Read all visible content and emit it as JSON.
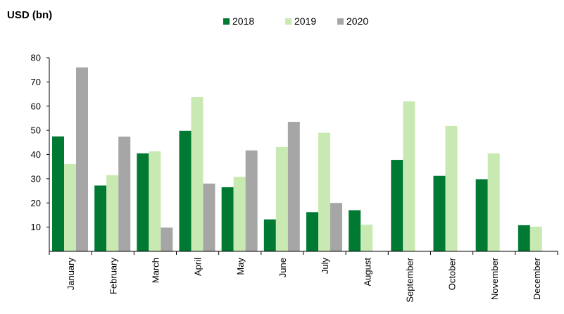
{
  "chart_data": {
    "type": "bar",
    "ylabel": "USD (bn)",
    "categories": [
      "January",
      "February",
      "March",
      "April",
      "May",
      "June",
      "July",
      "August",
      "September",
      "October",
      "November",
      "December"
    ],
    "series": [
      {
        "name": "2018",
        "color": "#007A33",
        "values": [
          47.5,
          27.2,
          40.5,
          49.8,
          26.5,
          13.2,
          16.2,
          17.0,
          37.8,
          31.2,
          29.8,
          10.8
        ]
      },
      {
        "name": "2019",
        "color": "#C9E9B2",
        "values": [
          36.1,
          31.5,
          41.3,
          63.7,
          30.8,
          43.1,
          49.0,
          11.0,
          62.0,
          51.8,
          40.5,
          10.2
        ]
      },
      {
        "name": "2020",
        "color": "#A6A6A6",
        "values": [
          76.0,
          47.4,
          9.8,
          28.0,
          41.7,
          53.5,
          20.0,
          null,
          null,
          null,
          null,
          null
        ]
      }
    ],
    "ylim": [
      0,
      80
    ],
    "yticks": [
      10,
      20,
      30,
      40,
      50,
      60,
      70,
      80
    ],
    "grid": false,
    "legend_position": "top-center"
  }
}
